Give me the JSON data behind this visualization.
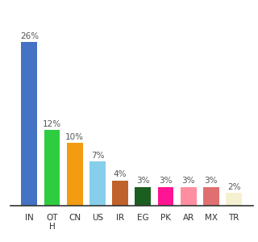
{
  "categories": [
    "IN",
    "OT\nH",
    "CN",
    "US",
    "IR",
    "EG",
    "PK",
    "AR",
    "MX",
    "TR"
  ],
  "values": [
    26,
    12,
    10,
    7,
    4,
    3,
    3,
    3,
    3,
    2
  ],
  "labels": [
    "26%",
    "12%",
    "10%",
    "7%",
    "4%",
    "3%",
    "3%",
    "3%",
    "3%",
    "2%"
  ],
  "bar_colors": [
    "#4472c4",
    "#2ecc40",
    "#f39c12",
    "#87ceeb",
    "#c0622b",
    "#1a5e20",
    "#ff1493",
    "#ff8fa0",
    "#e07070",
    "#f5f0d0"
  ],
  "ylim": [
    0,
    30
  ],
  "background_color": "#ffffff",
  "label_fontsize": 7.5,
  "tick_fontsize": 7.5
}
